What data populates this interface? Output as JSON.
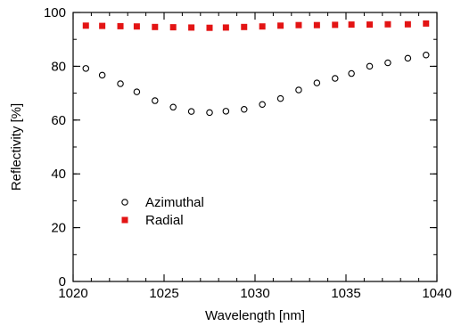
{
  "chart_data": {
    "type": "scatter",
    "xlabel": "Wavelength [nm]",
    "ylabel": "Reflectivity [%]",
    "xlim": [
      1020,
      1040
    ],
    "ylim": [
      0,
      100
    ],
    "x_ticks": [
      1020,
      1025,
      1030,
      1035,
      1040
    ],
    "y_ticks": [
      0,
      20,
      40,
      60,
      80,
      100
    ],
    "x_minor_step": 1,
    "y_minor_step": 10,
    "grid": false,
    "legend_position": "lower-left",
    "series": [
      {
        "name": "Azimuthal",
        "marker": "open-circle",
        "color": "#000000",
        "x": [
          1020.7,
          1021.6,
          1022.6,
          1023.5,
          1024.5,
          1025.5,
          1026.5,
          1027.5,
          1028.4,
          1029.4,
          1030.4,
          1031.4,
          1032.4,
          1033.4,
          1034.4,
          1035.3,
          1036.3,
          1037.3,
          1038.4,
          1039.4
        ],
        "y": [
          79.2,
          76.7,
          73.5,
          70.5,
          67.2,
          64.8,
          63.2,
          62.8,
          63.3,
          64.0,
          65.8,
          68.0,
          71.2,
          73.8,
          75.5,
          77.3,
          80.0,
          81.3,
          83.0,
          84.2
        ]
      },
      {
        "name": "Radial",
        "marker": "filled-square",
        "color": "#e31414",
        "x": [
          1020.7,
          1021.6,
          1022.6,
          1023.5,
          1024.5,
          1025.5,
          1026.5,
          1027.5,
          1028.4,
          1029.4,
          1030.4,
          1031.4,
          1032.4,
          1033.4,
          1034.4,
          1035.3,
          1036.3,
          1037.3,
          1038.4,
          1039.4
        ],
        "y": [
          95.1,
          95.0,
          94.9,
          94.8,
          94.6,
          94.5,
          94.4,
          94.3,
          94.4,
          94.6,
          94.8,
          95.1,
          95.3,
          95.3,
          95.4,
          95.5,
          95.5,
          95.6,
          95.6,
          95.9
        ]
      }
    ]
  }
}
